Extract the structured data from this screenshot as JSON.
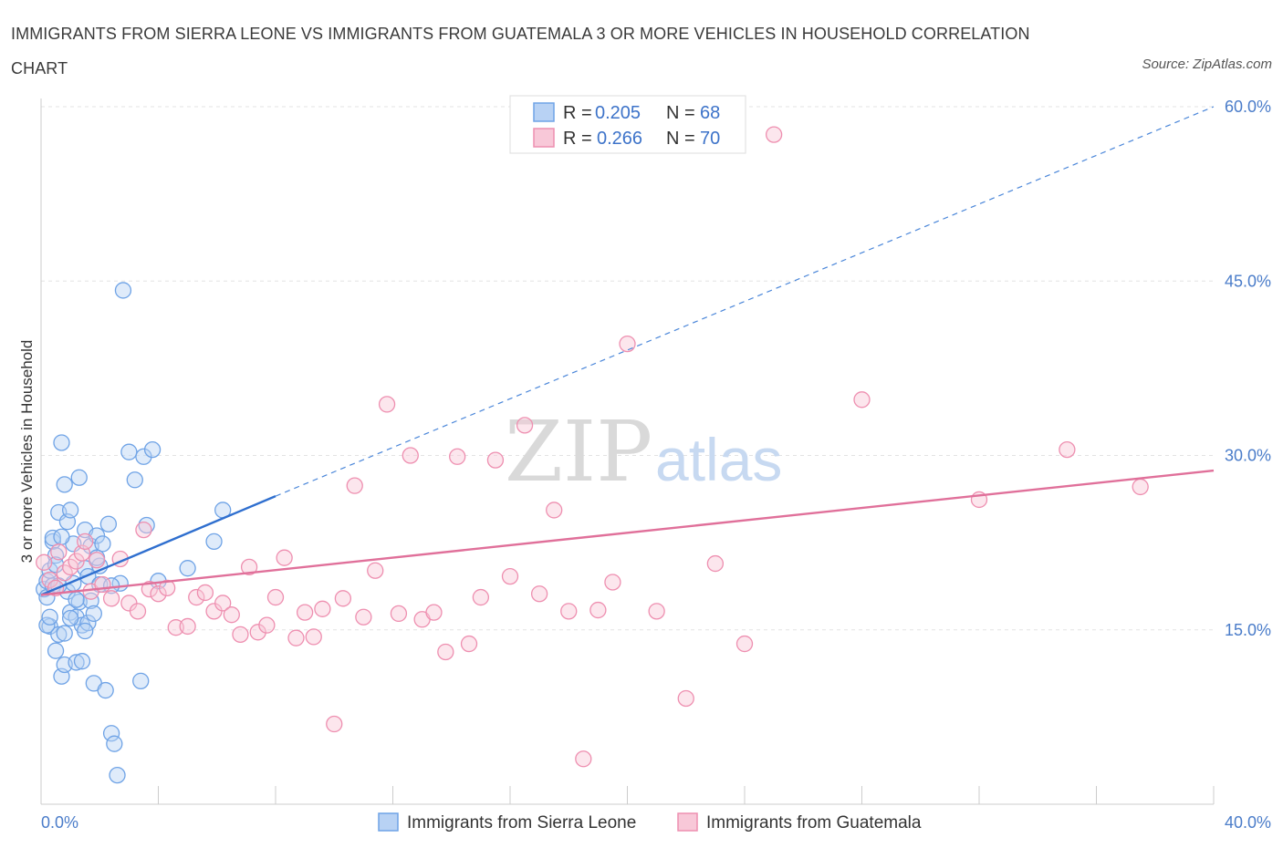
{
  "title": "IMMIGRANTS FROM SIERRA LEONE VS IMMIGRANTS FROM GUATEMALA 3 OR MORE VEHICLES IN HOUSEHOLD CORRELATION CHART",
  "source": "Source: ZipAtlas.com",
  "watermark": {
    "zip": "ZIP",
    "atlas": "atlas"
  },
  "legend_top": {
    "rows": [
      {
        "r_label": "R = ",
        "r_value": "0.205",
        "n_label": "N = ",
        "n_value": "68"
      },
      {
        "r_label": "R = ",
        "r_value": "0.266",
        "n_label": "N = ",
        "n_value": "70"
      }
    ]
  },
  "chart_data": {
    "type": "scatter",
    "title": "IMMIGRANTS FROM SIERRA LEONE VS IMMIGRANTS FROM GUATEMALA 3 OR MORE VEHICLES IN HOUSEHOLD CORRELATION CHART",
    "xlabel": "",
    "ylabel": "3 or more Vehicles in Household",
    "xlim": [
      0,
      40
    ],
    "ylim": [
      0,
      60
    ],
    "x_tick_labels": [
      "0.0%",
      "40.0%"
    ],
    "y_ticks": [
      15,
      30,
      45,
      60
    ],
    "y_tick_labels": [
      "15.0%",
      "30.0%",
      "45.0%",
      "60.0%"
    ],
    "grid": true,
    "legend_position": "bottom",
    "series": [
      {
        "name": "Immigrants from Sierra Leone",
        "color": "#6fa3e6",
        "fill": "#b8d2f4",
        "R": 0.205,
        "N": 68,
        "trend": {
          "x": [
            0,
            8
          ],
          "y": [
            18.0,
            26.5
          ],
          "dashed_extension_to": [
            40,
            60.0
          ]
        },
        "x": [
          0.1,
          0.2,
          0.2,
          0.3,
          0.3,
          0.4,
          0.4,
          0.5,
          0.5,
          0.6,
          0.6,
          0.7,
          0.7,
          0.8,
          0.8,
          0.9,
          0.9,
          1.0,
          1.0,
          1.1,
          1.1,
          1.2,
          1.2,
          1.3,
          1.3,
          1.4,
          1.4,
          1.5,
          1.5,
          1.6,
          1.6,
          1.7,
          1.7,
          1.8,
          1.8,
          1.9,
          2.0,
          2.0,
          2.1,
          2.2,
          2.3,
          2.4,
          2.5,
          2.6,
          2.7,
          2.8,
          3.0,
          3.2,
          3.4,
          3.5,
          3.6,
          3.8,
          4.0,
          5.0,
          5.9,
          6.2,
          0.2,
          0.3,
          0.5,
          0.6,
          0.8,
          1.0,
          1.2,
          1.5,
          1.9,
          2.4,
          0.4,
          0.7
        ],
        "y": [
          18.5,
          19.2,
          17.8,
          20.1,
          15.3,
          22.6,
          18.8,
          21.4,
          13.2,
          14.6,
          25.1,
          31.1,
          11.0,
          12.0,
          27.5,
          18.3,
          24.3,
          25.3,
          16.5,
          19.0,
          22.4,
          16.1,
          12.2,
          28.1,
          17.4,
          12.3,
          15.4,
          20.3,
          23.6,
          19.6,
          15.6,
          17.5,
          22.2,
          16.4,
          10.4,
          23.1,
          18.9,
          20.5,
          22.4,
          9.8,
          24.1,
          6.1,
          5.2,
          2.5,
          19.0,
          44.2,
          30.3,
          27.9,
          10.6,
          29.9,
          24.0,
          30.5,
          19.2,
          20.3,
          22.6,
          25.3,
          15.4,
          16.1,
          20.6,
          18.8,
          14.7,
          16.0,
          17.6,
          14.9,
          21.2,
          18.8,
          22.9,
          23.0
        ]
      },
      {
        "name": "Immigrants from Guatemala",
        "color": "#ee8fb0",
        "fill": "#f8c8d8",
        "R": 0.266,
        "N": 70,
        "trend": {
          "x": [
            0,
            40
          ],
          "y": [
            18.0,
            28.7
          ]
        },
        "x": [
          0.1,
          0.3,
          0.5,
          0.6,
          0.8,
          1.0,
          1.2,
          1.4,
          1.5,
          1.7,
          1.9,
          2.1,
          2.4,
          2.7,
          3.0,
          3.3,
          3.5,
          3.7,
          4.0,
          4.3,
          4.6,
          5.0,
          5.3,
          5.6,
          5.9,
          6.2,
          6.5,
          6.8,
          7.1,
          7.4,
          7.7,
          8.0,
          8.3,
          8.7,
          9.0,
          9.3,
          9.6,
          10.0,
          10.3,
          10.7,
          11.0,
          11.4,
          11.8,
          12.2,
          12.6,
          13.0,
          13.4,
          13.8,
          14.2,
          14.6,
          15.0,
          15.5,
          16.0,
          16.5,
          17.0,
          17.5,
          18.0,
          18.5,
          19.0,
          19.5,
          20.0,
          21.0,
          22.0,
          23.0,
          24.0,
          25.0,
          28.0,
          32.0,
          35.0,
          37.5
        ],
        "y": [
          20.8,
          19.3,
          18.6,
          21.7,
          19.9,
          20.4,
          20.9,
          21.6,
          22.6,
          18.3,
          21.0,
          18.9,
          17.7,
          21.1,
          17.3,
          16.6,
          23.6,
          18.5,
          18.1,
          18.6,
          15.2,
          15.3,
          17.8,
          18.2,
          16.6,
          17.3,
          16.3,
          14.6,
          20.4,
          14.8,
          15.4,
          17.8,
          21.2,
          14.3,
          16.5,
          14.4,
          16.8,
          6.9,
          17.7,
          27.4,
          16.1,
          20.1,
          34.4,
          16.4,
          30.0,
          15.9,
          16.5,
          13.1,
          29.9,
          13.8,
          17.8,
          29.6,
          19.6,
          32.6,
          18.1,
          25.3,
          16.6,
          3.9,
          16.7,
          19.1,
          39.6,
          16.6,
          9.1,
          20.7,
          13.8,
          57.6,
          34.8,
          26.2,
          30.5,
          27.3
        ]
      }
    ]
  }
}
